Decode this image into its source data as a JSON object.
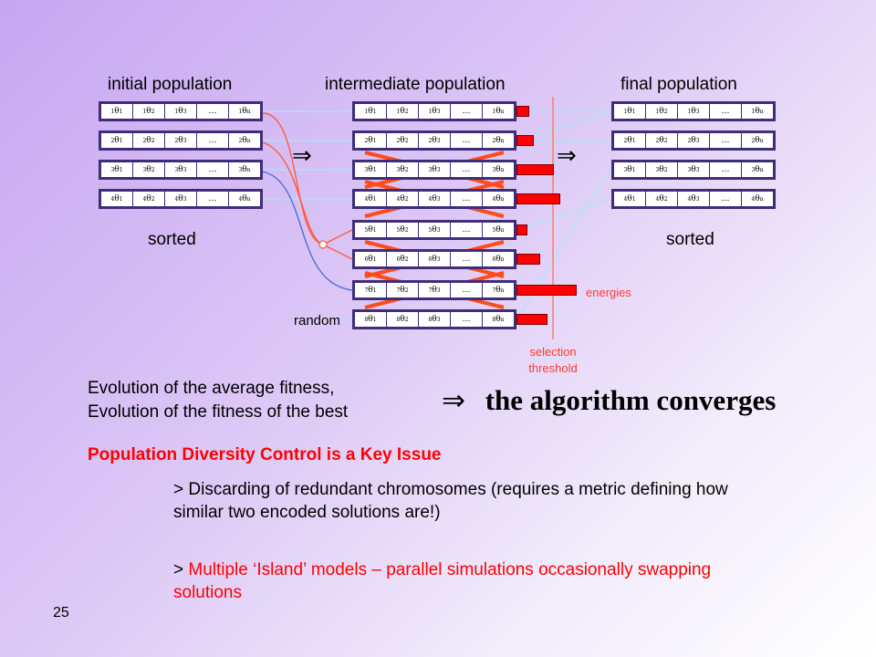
{
  "labels": {
    "initial": "initial population",
    "intermediate": "intermediate population",
    "final": "final population",
    "sorted_left": "sorted",
    "sorted_right": "sorted",
    "random": "random",
    "energies": "energies",
    "threshold_line1": "selection",
    "threshold_line2": "threshold",
    "implies_1": "⇒",
    "implies_2": "⇒"
  },
  "cell": {
    "symbol": "θ",
    "ellipsis": "…",
    "idx1": "1",
    "idx2": "2",
    "idx3": "3",
    "idxn": "n"
  },
  "chromosome_indices": {
    "initial": [
      "1",
      "2",
      "3",
      "4"
    ],
    "intermediate": [
      "1",
      "2",
      "3",
      "4",
      "5",
      "6",
      "7",
      "8"
    ],
    "final": [
      "1",
      "2",
      "3",
      "4"
    ]
  },
  "energies": [
    0.19,
    0.27,
    0.57,
    0.66,
    0.17,
    0.36,
    0.91,
    0.47
  ],
  "discarded": [
    3,
    4,
    6,
    7
  ],
  "text": {
    "fitness_line1": "Evolution of the average fitness,",
    "fitness_line2": "Evolution of the fitness of the best",
    "converge_arrow": "⇒",
    "converge": "the algorithm converges",
    "heading": "Population Diversity Control is a Key Issue",
    "bullet1": "> Discarding of redundant chromosomes (requires a metric defining how similar two encoded solutions are!)",
    "bullet2_prefix": "> ",
    "bullet2_red": "Multiple ‘Island’ models – parallel simulations occasionally swapping solutions",
    "page_number": "25"
  },
  "colors": {
    "heading": "#ff0000",
    "bars": "#ff0000",
    "cross": "#ff4a1a",
    "chromo_border": "#3f2d7a"
  }
}
